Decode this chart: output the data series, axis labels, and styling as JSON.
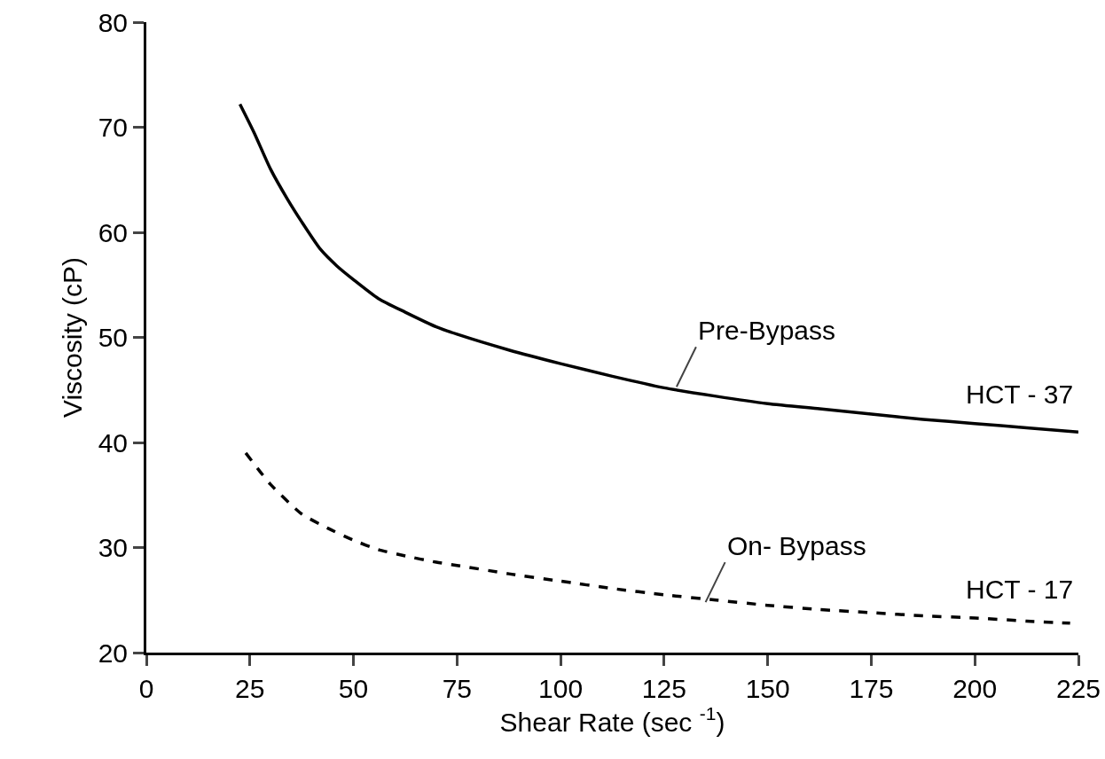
{
  "chart_data": {
    "type": "line",
    "xlabel": "Shear Rate (sec $^{-1}$)",
    "ylabel": "Viscosity (cP)",
    "xlim": [
      0,
      225
    ],
    "xticks": [
      0,
      25,
      50,
      75,
      100,
      125,
      150,
      175,
      200,
      225
    ],
    "ylim": [
      20,
      80
    ],
    "yticks": [
      20,
      30,
      40,
      50,
      60,
      70,
      80
    ],
    "marker": "none",
    "series": [
      {
        "color": "#000000",
        "line_style": "solid",
        "x": [
          22.6,
          26,
          30,
          34,
          37.5,
          42,
          46,
          50,
          56,
          62.5,
          70,
          75,
          87.5,
          100,
          112.5,
          125,
          137.5,
          150,
          162.5,
          175,
          187.5,
          200,
          212.5,
          225
        ],
        "values": [
          72.2,
          69.5,
          66,
          63.2,
          61,
          58.4,
          56.8,
          55.5,
          53.7,
          52.4,
          51,
          50.3,
          48.8,
          47.5,
          46.3,
          45.2,
          44.4,
          43.7,
          43.2,
          42.7,
          42.2,
          41.8,
          41.4,
          41
        ]
      },
      {
        "color": "#000000",
        "line_style": "dashed",
        "x": [
          24,
          30,
          37.5,
          44,
          50,
          56,
          62.5,
          70,
          75,
          87.5,
          100,
          112.5,
          125,
          137.5,
          150,
          162.5,
          175,
          187.5,
          200,
          212.5,
          223
        ],
        "values": [
          39,
          36,
          33.2,
          31.8,
          30.7,
          29.8,
          29.2,
          28.6,
          28.3,
          27.5,
          26.8,
          26.1,
          25.5,
          25,
          24.5,
          24.1,
          23.8,
          23.5,
          23.3,
          23,
          22.8
        ]
      }
    ],
    "annotations": [
      {
        "text": "Pre-Bypass",
        "x": 128,
        "y": 45.3
      },
      "HCT - 37",
      {
        "text": "On- Bypass",
        "x": 135,
        "y": 24.8
      },
      "HCT - 17"
    ]
  }
}
